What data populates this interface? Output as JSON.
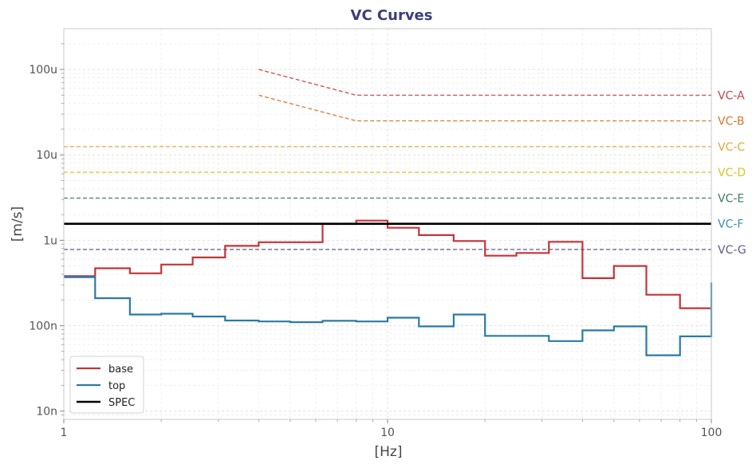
{
  "chart_data": {
    "type": "line",
    "title": "VC Curves",
    "xlabel": "[Hz]",
    "ylabel": "[m/s]",
    "xscale": "log",
    "yscale": "log",
    "xlim": [
      1,
      100
    ],
    "ylim": [
      8e-09,
      0.0003
    ],
    "grid": true,
    "legend_position": "bottom-left",
    "x_ticks": [
      {
        "value": 1,
        "label": "1"
      },
      {
        "value": 10,
        "label": "10"
      },
      {
        "value": 100,
        "label": "100"
      }
    ],
    "y_ticks": [
      {
        "value": 1e-08,
        "label": "10n"
      },
      {
        "value": 1e-07,
        "label": "100n"
      },
      {
        "value": 1e-06,
        "label": "1u"
      },
      {
        "value": 1e-05,
        "label": "10u"
      },
      {
        "value": 0.0001,
        "label": "100u"
      }
    ],
    "criteria": [
      {
        "label": "VC-A",
        "color": "#c0474a",
        "points": [
          [
            4,
            0.0001
          ],
          [
            8,
            5e-05
          ],
          [
            100,
            5e-05
          ]
        ]
      },
      {
        "label": "VC-B",
        "color": "#d2772c",
        "points": [
          [
            4,
            5e-05
          ],
          [
            8,
            2.5e-05
          ],
          [
            100,
            2.5e-05
          ]
        ]
      },
      {
        "label": "VC-C",
        "color": "#e3a83a",
        "points": [
          [
            1,
            1.25e-05
          ],
          [
            100,
            1.25e-05
          ]
        ]
      },
      {
        "label": "VC-D",
        "color": "#d8c22a",
        "points": [
          [
            1,
            6.25e-06
          ],
          [
            100,
            6.25e-06
          ]
        ]
      },
      {
        "label": "VC-E",
        "color": "#3f7a64",
        "points": [
          [
            1,
            3.12e-06
          ],
          [
            100,
            3.12e-06
          ]
        ]
      },
      {
        "label": "VC-F",
        "color": "#3c8fb5",
        "points": [
          [
            1,
            1.56e-06
          ],
          [
            100,
            1.56e-06
          ]
        ]
      },
      {
        "label": "VC-G",
        "color": "#5e5a88",
        "points": [
          [
            1,
            7.8e-07
          ],
          [
            100,
            7.8e-07
          ]
        ]
      }
    ],
    "series": [
      {
        "name": "base",
        "color": "#c4343a",
        "style": "step",
        "bands": [
          1,
          1.25,
          1.6,
          2,
          2.5,
          3.15,
          4,
          5,
          6.3,
          8,
          10,
          12.5,
          16,
          20,
          25,
          31.5,
          40,
          50,
          63,
          80,
          100
        ],
        "values": [
          3.8e-07,
          4.7e-07,
          4.1e-07,
          5.2e-07,
          6.3e-07,
          8.6e-07,
          9.5e-07,
          9.5e-07,
          1.55e-06,
          1.7e-06,
          1.4e-06,
          1.15e-06,
          9.8e-07,
          6.6e-07,
          7.1e-07,
          9.6e-07,
          3.6e-07,
          5e-07,
          2.3e-07,
          1.6e-07
        ]
      },
      {
        "name": "top",
        "color": "#2a7aa8",
        "style": "step",
        "bands": [
          1,
          1.25,
          1.6,
          2,
          2.5,
          3.15,
          4,
          5,
          6.3,
          8,
          10,
          12.5,
          16,
          20,
          25,
          31.5,
          40,
          50,
          63,
          80,
          100
        ],
        "values": [
          3.7e-07,
          2.1e-07,
          1.35e-07,
          1.38e-07,
          1.28e-07,
          1.15e-07,
          1.12e-07,
          1.1e-07,
          1.14e-07,
          1.12e-07,
          1.24e-07,
          9.8e-08,
          1.35e-07,
          7.6e-08,
          7.6e-08,
          6.6e-08,
          8.8e-08,
          9.8e-08,
          4.5e-08,
          7.5e-08
        ],
        "end_value": 3.2e-07
      },
      {
        "name": "SPEC",
        "color": "#000000",
        "style": "line",
        "points": [
          [
            1,
            1.56e-06
          ],
          [
            100,
            1.56e-06
          ]
        ]
      }
    ]
  }
}
